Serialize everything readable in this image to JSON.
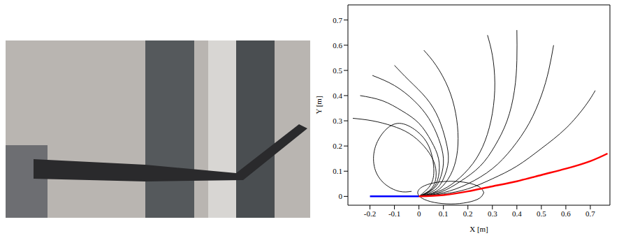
{
  "chart_data": {
    "type": "line",
    "x_label": "X [m]",
    "y_label": "Y [m]",
    "xlim": [
      -0.29,
      0.78
    ],
    "ylim": [
      -0.035,
      0.76
    ],
    "xticks": [
      -0.2,
      -0.1,
      0,
      0.1,
      0.2,
      0.3,
      0.4,
      0.5,
      0.6,
      0.7
    ],
    "yticks": [
      0,
      0.1,
      0.2,
      0.3,
      0.4,
      0.5,
      0.6,
      0.7
    ],
    "series": [
      {
        "color": "#000000",
        "x": [
          0,
          0.1,
          0.2,
          0.3,
          0.4,
          0.5,
          0.6,
          0.68,
          0.72
        ],
        "values": [
          0,
          0.01,
          0.03,
          0.07,
          0.12,
          0.19,
          0.27,
          0.36,
          0.42
        ]
      },
      {
        "color": "#000000",
        "x": [
          0,
          0.1,
          0.2,
          0.3,
          0.38,
          0.45,
          0.5,
          0.53,
          0.55
        ],
        "values": [
          0,
          0.015,
          0.05,
          0.11,
          0.19,
          0.29,
          0.4,
          0.5,
          0.6
        ]
      },
      {
        "color": "#000000",
        "x": [
          0,
          0.09,
          0.17,
          0.25,
          0.31,
          0.36,
          0.39,
          0.4,
          0.4
        ],
        "values": [
          0,
          0.018,
          0.06,
          0.12,
          0.2,
          0.3,
          0.42,
          0.54,
          0.66
        ]
      },
      {
        "color": "#000000",
        "x": [
          0,
          0.08,
          0.15,
          0.22,
          0.27,
          0.3,
          0.31,
          0.3,
          0.28
        ],
        "values": [
          0,
          0.02,
          0.06,
          0.13,
          0.22,
          0.33,
          0.45,
          0.56,
          0.64
        ]
      },
      {
        "color": "#000000",
        "x": [
          0,
          0.07,
          0.12,
          0.15,
          0.16,
          0.15,
          0.12,
          0.07,
          0.02
        ],
        "values": [
          0,
          0.02,
          0.07,
          0.14,
          0.23,
          0.33,
          0.43,
          0.52,
          0.58
        ]
      },
      {
        "color": "#000000",
        "x": [
          0,
          0.065,
          0.1,
          0.12,
          0.11,
          0.08,
          0.03,
          -0.04,
          -0.1
        ],
        "values": [
          0,
          0.025,
          0.07,
          0.14,
          0.22,
          0.31,
          0.39,
          0.46,
          0.52
        ]
      },
      {
        "color": "#000000",
        "x": [
          0,
          0.06,
          0.09,
          0.1,
          0.08,
          0.04,
          -0.02,
          -0.1,
          -0.19
        ],
        "values": [
          0,
          0.03,
          0.08,
          0.15,
          0.23,
          0.31,
          0.38,
          0.44,
          0.48
        ]
      },
      {
        "color": "#000000",
        "x": [
          0,
          0.055,
          0.08,
          0.08,
          0.05,
          0.0,
          -0.07,
          -0.15,
          -0.24
        ],
        "values": [
          0,
          0.03,
          0.08,
          0.15,
          0.22,
          0.29,
          0.34,
          0.38,
          0.4
        ]
      },
      {
        "color": "#000000",
        "x": [
          0,
          0.05,
          0.07,
          0.06,
          0.02,
          -0.04,
          -0.11,
          -0.19,
          -0.27
        ],
        "values": [
          0,
          0.03,
          0.08,
          0.14,
          0.2,
          0.25,
          0.28,
          0.3,
          0.31
        ]
      },
      {
        "color": "#000000",
        "x": [
          0,
          0.05,
          0.06,
          0.04,
          -0.01,
          -0.08,
          -0.14,
          -0.18,
          -0.18,
          -0.14,
          -0.08,
          -0.03
        ],
        "values": [
          0,
          0.05,
          0.12,
          0.2,
          0.26,
          0.29,
          0.26,
          0.19,
          0.11,
          0.05,
          0.02,
          0.02
        ]
      },
      {
        "color": "#000000",
        "x": [
          0.265,
          0.247,
          0.1975,
          0.13,
          0.0625,
          0.013,
          -0.005,
          0.013,
          0.0625,
          0.13,
          0.1975,
          0.247,
          0.265
        ],
        "values": [
          0.015,
          0.0375,
          0.054,
          0.06,
          0.054,
          0.0375,
          0.015,
          -0.0075,
          -0.024,
          -0.03,
          -0.024,
          -0.0075,
          0.015
        ]
      },
      {
        "color": "#0000ff",
        "x": [
          -0.2,
          0
        ],
        "values": [
          0,
          0
        ]
      },
      {
        "color": "#ff0000",
        "x": [
          0,
          0.1,
          0.2,
          0.3,
          0.4,
          0.5,
          0.6,
          0.7,
          0.77
        ],
        "values": [
          0,
          0.005,
          0.02,
          0.04,
          0.06,
          0.085,
          0.11,
          0.14,
          0.17
        ]
      }
    ]
  }
}
